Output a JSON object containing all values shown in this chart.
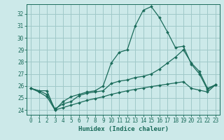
{
  "xlabel": "Humidex (Indice chaleur)",
  "background_color": "#cce9e9",
  "grid_color": "#a0c8c8",
  "line_color": "#1a6b5a",
  "xlim": [
    -0.5,
    23.5
  ],
  "ylim": [
    23.6,
    32.8
  ],
  "yticks": [
    24,
    25,
    26,
    27,
    28,
    29,
    30,
    31,
    32
  ],
  "xticks": [
    0,
    1,
    2,
    3,
    4,
    5,
    6,
    7,
    8,
    9,
    10,
    11,
    12,
    13,
    14,
    15,
    16,
    17,
    18,
    19,
    20,
    21,
    22,
    23
  ],
  "line1_x": [
    0,
    1,
    2,
    3,
    4,
    5,
    6,
    7,
    8,
    9,
    10,
    11,
    12,
    13,
    14,
    15,
    16,
    17,
    18,
    19,
    20,
    21,
    22,
    23
  ],
  "line1_y": [
    25.8,
    25.6,
    25.6,
    24.0,
    24.7,
    25.1,
    25.3,
    25.5,
    25.6,
    26.0,
    27.9,
    28.8,
    29.0,
    31.0,
    32.3,
    32.6,
    31.7,
    30.5,
    29.2,
    29.3,
    27.8,
    27.0,
    25.7,
    26.1
  ],
  "line2_x": [
    0,
    1,
    2,
    3,
    4,
    5,
    6,
    7,
    8,
    9,
    10,
    11,
    12,
    13,
    14,
    15,
    16,
    17,
    18,
    19,
    20,
    21,
    22,
    23
  ],
  "line2_y": [
    25.8,
    25.6,
    25.3,
    24.1,
    24.5,
    24.7,
    25.2,
    25.4,
    25.5,
    25.6,
    26.2,
    26.4,
    26.5,
    26.7,
    26.8,
    27.0,
    27.4,
    27.9,
    28.4,
    29.0,
    27.9,
    27.2,
    25.8,
    26.1
  ],
  "line3_x": [
    0,
    1,
    2,
    3,
    4,
    5,
    6,
    7,
    8,
    9,
    10,
    11,
    12,
    13,
    14,
    15,
    16,
    17,
    18,
    19,
    20,
    21,
    22,
    23
  ],
  "line3_y": [
    25.8,
    25.5,
    25.1,
    24.0,
    24.2,
    24.4,
    24.6,
    24.8,
    24.95,
    25.1,
    25.3,
    25.45,
    25.6,
    25.72,
    25.83,
    25.95,
    26.05,
    26.15,
    26.25,
    26.35,
    25.8,
    25.65,
    25.5,
    26.1
  ]
}
